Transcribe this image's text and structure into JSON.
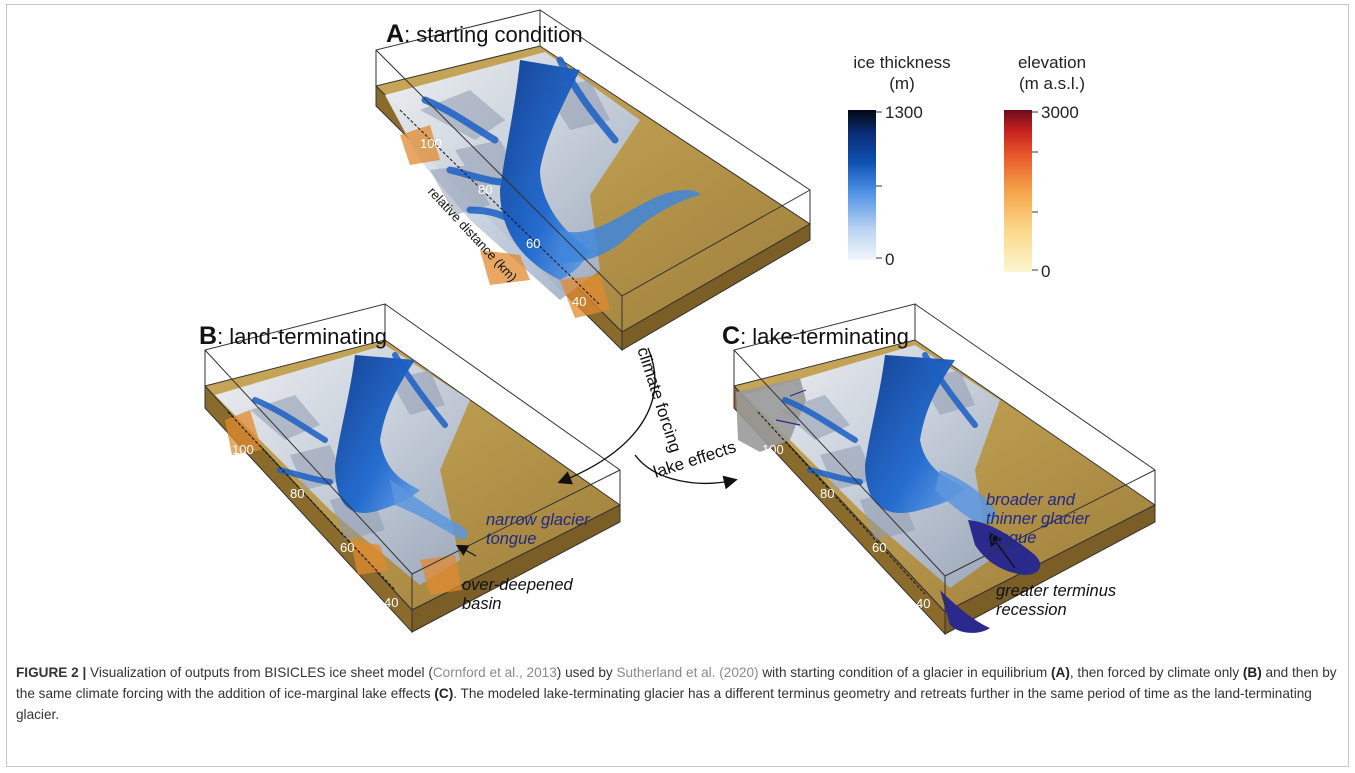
{
  "panels": {
    "a": {
      "letter": "A",
      "title": ": starting condition"
    },
    "b": {
      "letter": "B",
      "title": ": land-terminating"
    },
    "c": {
      "letter": "C",
      "title": ": lake-terminating"
    }
  },
  "legend": {
    "ice": {
      "title_line1": "ice thickness",
      "title_line2": "(m)",
      "max": "1300",
      "min": "0",
      "colors": [
        "#f2f6fb",
        "#bcd4f2",
        "#4f92e6",
        "#0f52b3",
        "#0a2b74",
        "#030812"
      ]
    },
    "elevation": {
      "title_line1": "elevation",
      "title_line2": "(m a.s.l.)",
      "max": "3000",
      "min": "0",
      "colors": [
        "#fdf6d0",
        "#fbd98c",
        "#f5a44a",
        "#e8572a",
        "#c41f1f",
        "#6b0b1a"
      ]
    }
  },
  "distance_labels": {
    "a": [
      "100",
      "80",
      "60",
      "40"
    ],
    "b": [
      "100",
      "80",
      "60",
      "40"
    ],
    "c": [
      "100",
      "80",
      "60",
      "40"
    ]
  },
  "axis_title": "relative distance (km)",
  "arrows": {
    "climate": "climate forcing",
    "lake": "lake effects"
  },
  "annotations": {
    "b_blue_1": "narrow glacier",
    "b_blue_2": "tongue",
    "b_black_1": "over-deepened",
    "b_black_2": "basin",
    "c_blue_1": "broader and",
    "c_blue_2": "thinner glacier",
    "c_blue_3": "tongue",
    "c_black_1": "greater terminus",
    "c_black_2": "recession"
  },
  "caption": {
    "label": "FIGURE 2 |",
    "t1": " Visualization of outputs from BISICLES ice sheet model (",
    "ref1": "Cornford et al., 2013",
    "t2": ") used by ",
    "ref2": "Sutherland et al. (2020)",
    "t3": " with starting condition of a glacier in equilibrium ",
    "bA": "(A)",
    "t4": ", then forced by climate only ",
    "bB": "(B)",
    "t5": " and then by the same climate forcing with the addition of ice-marginal lake effects ",
    "bC": "(C)",
    "t6": ". The modeled lake-terminating glacier has a different terminus geometry and retreats further in the same period of time as the land-terminating glacier."
  },
  "colors": {
    "terrain": "#b99a4e",
    "snow": "#dfe6f0",
    "ice": "#1a5fc4",
    "lake": "#2b2a8c",
    "annotation_blue": "#1f2a86"
  }
}
